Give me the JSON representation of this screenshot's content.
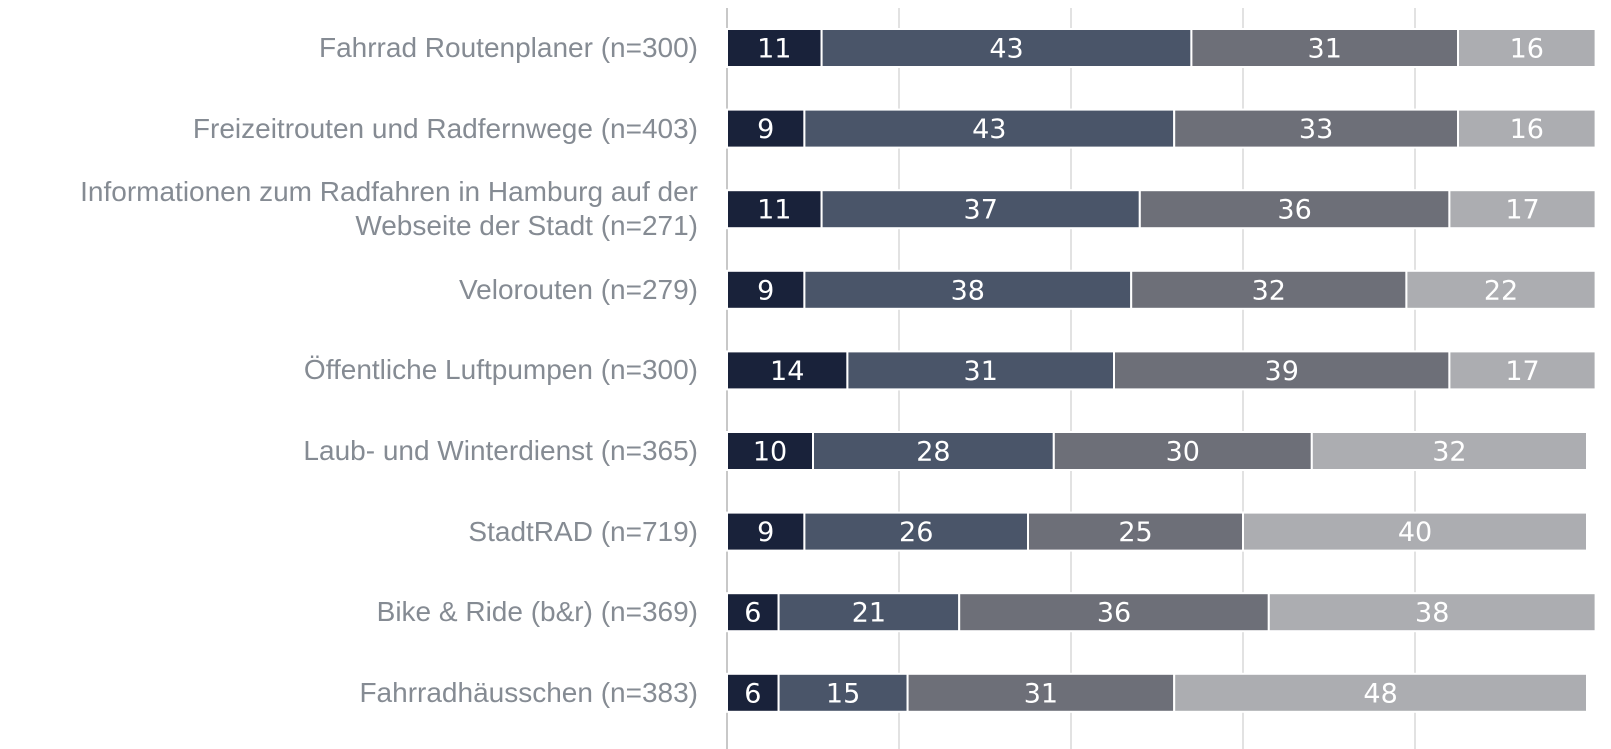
{
  "chart_data": {
    "type": "stacked_bar_horizontal",
    "categories": [
      "Fahrrad Routenplaner (n=300)",
      "Freizeitrouten und Radfernwege (n=403)",
      "Informationen zum Radfahren in Hamburg auf der Webseite der Stadt (n=271)",
      "Velorouten (n=279)",
      "Öffentliche Luftpumpen (n=300)",
      "Laub- und Winterdienst (n=365)",
      "StadtRAD (n=719)",
      "Bike & Ride (b&r) (n=369)",
      "Fahrradhäusschen (n=383)"
    ],
    "series": [
      {
        "color": "#19223a",
        "values": [
          11,
          9,
          11,
          9,
          14,
          10,
          9,
          6,
          6
        ]
      },
      {
        "color": "#4a5569",
        "values": [
          43,
          43,
          37,
          38,
          31,
          28,
          26,
          21,
          15
        ]
      },
      {
        "color": "#6d6f78",
        "values": [
          31,
          33,
          36,
          32,
          39,
          30,
          25,
          36,
          31
        ]
      },
      {
        "color": "#acadb1",
        "values": [
          16,
          16,
          17,
          22,
          17,
          32,
          40,
          38,
          48
        ]
      }
    ],
    "xlim": [
      0,
      100
    ],
    "xticks": [
      0,
      20,
      40,
      60,
      80
    ],
    "grid": true
  }
}
